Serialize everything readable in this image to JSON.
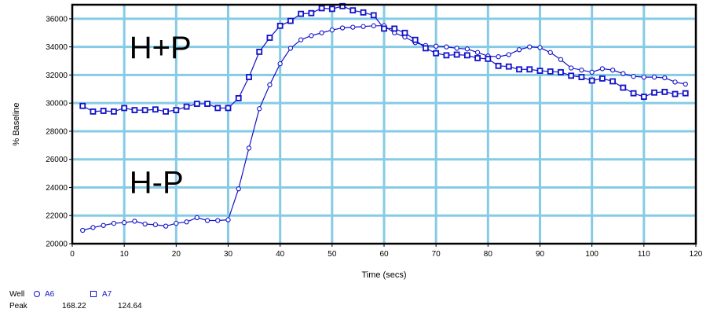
{
  "chart_data": {
    "type": "line",
    "xlabel": "Time (secs)",
    "ylabel": "% Baseline",
    "xlim": [
      0,
      120
    ],
    "ylim": [
      20000,
      37000
    ],
    "xticks": [
      0,
      10,
      20,
      30,
      40,
      50,
      60,
      70,
      80,
      90,
      100,
      110,
      120
    ],
    "yticks": [
      20000,
      22000,
      24000,
      26000,
      28000,
      30000,
      32000,
      34000,
      36000
    ],
    "grid": true,
    "annotations": [
      {
        "text": "H+P",
        "x": 11,
        "y": 33200
      },
      {
        "text": "H-P",
        "x": 11,
        "y": 23600
      }
    ],
    "series": [
      {
        "name": "A6",
        "marker": "circle",
        "color": "#1212c8",
        "x": [
          2,
          4,
          6,
          8,
          10,
          12,
          14,
          16,
          18,
          20,
          22,
          24,
          26,
          28,
          30,
          32,
          34,
          36,
          38,
          40,
          42,
          44,
          46,
          48,
          50,
          52,
          54,
          56,
          58,
          60,
          62,
          64,
          66,
          68,
          70,
          72,
          74,
          76,
          78,
          80,
          82,
          84,
          86,
          88,
          90,
          92,
          94,
          96,
          98,
          100,
          102,
          104,
          106,
          108,
          110,
          112,
          114,
          116,
          118
        ],
        "values": [
          20950,
          21150,
          21300,
          21450,
          21500,
          21600,
          21400,
          21350,
          21250,
          21450,
          21550,
          21850,
          21650,
          21650,
          21700,
          23900,
          26800,
          29600,
          31300,
          32800,
          33900,
          34500,
          34800,
          35000,
          35200,
          35350,
          35400,
          35450,
          35500,
          35500,
          35000,
          34700,
          34300,
          34100,
          34050,
          34000,
          33900,
          33850,
          33600,
          33350,
          33300,
          33450,
          33800,
          34000,
          33950,
          33600,
          33100,
          32500,
          32350,
          32200,
          32450,
          32350,
          32100,
          31900,
          31850,
          31850,
          31800,
          31500,
          31350
        ]
      },
      {
        "name": "A7",
        "marker": "square",
        "color": "#1212c8",
        "x": [
          2,
          4,
          6,
          8,
          10,
          12,
          14,
          16,
          18,
          20,
          22,
          24,
          26,
          28,
          30,
          32,
          34,
          36,
          38,
          40,
          42,
          44,
          46,
          48,
          50,
          52,
          54,
          56,
          58,
          60,
          62,
          64,
          66,
          68,
          70,
          72,
          74,
          76,
          78,
          80,
          82,
          84,
          86,
          88,
          90,
          92,
          94,
          96,
          98,
          100,
          102,
          104,
          106,
          108,
          110,
          112,
          114,
          116,
          118
        ],
        "values": [
          29800,
          29400,
          29450,
          29400,
          29650,
          29500,
          29500,
          29550,
          29400,
          29500,
          29750,
          29950,
          29950,
          29650,
          29650,
          30350,
          31850,
          33650,
          34650,
          35500,
          35850,
          36350,
          36400,
          36750,
          36700,
          36900,
          36600,
          36450,
          36250,
          35300,
          35300,
          35000,
          34500,
          33900,
          33550,
          33400,
          33450,
          33400,
          33200,
          33150,
          32650,
          32600,
          32400,
          32400,
          32300,
          32250,
          32200,
          31950,
          31850,
          31600,
          31750,
          31550,
          31100,
          30700,
          30450,
          30750,
          30800,
          30650,
          30700
        ]
      }
    ],
    "legend": {
      "placement": "bottom-left",
      "header": "Well",
      "stat_label": "Peak",
      "entries": [
        {
          "name": "A6",
          "marker": "circle",
          "peak": "168.22"
        },
        {
          "name": "A7",
          "marker": "square",
          "peak": "124.64"
        }
      ]
    }
  }
}
